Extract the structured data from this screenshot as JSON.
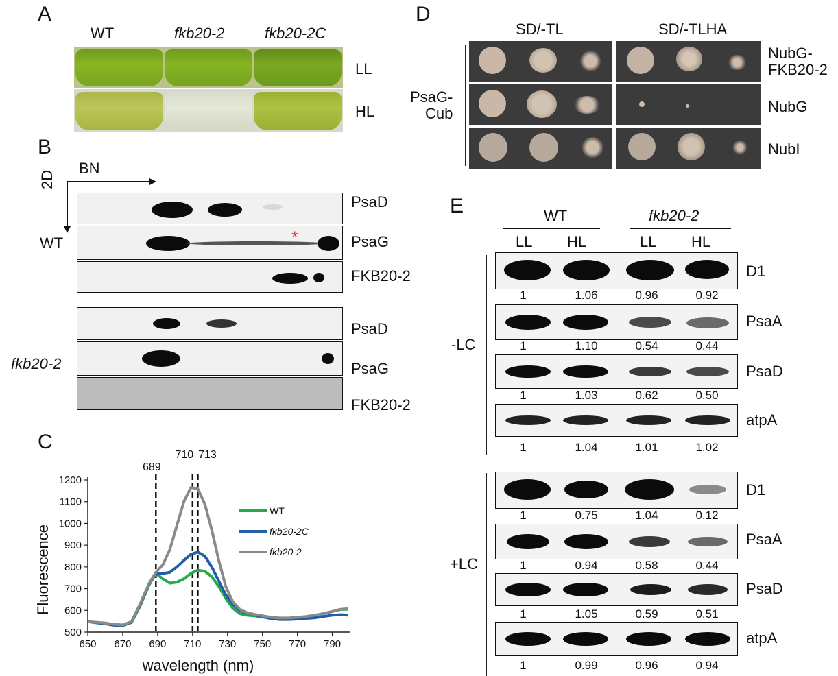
{
  "panelA": {
    "letter": "A",
    "columns": [
      "WT",
      "fkb20-2",
      "fkb20-2C"
    ],
    "rows": [
      "LL",
      "HL"
    ]
  },
  "panelB": {
    "letter": "B",
    "bn_label": "BN",
    "twod_label": "2D",
    "wt_label": "WT",
    "mutant_label": "fkb20-2",
    "wt_blots": [
      "PsaD",
      "PsaG",
      "FKB20-2"
    ],
    "mutant_blots": [
      "PsaD",
      "PsaG",
      "FKB20-2"
    ],
    "asterisk": "*",
    "asterisk_color": "#e0303a"
  },
  "panelC": {
    "letter": "C",
    "chart_data": {
      "type": "line",
      "xlabel": "wavelength (nm)",
      "ylabel": "Fluorescence",
      "xlim": [
        650,
        800
      ],
      "ylim": [
        500,
        1200
      ],
      "xticks": [
        650,
        670,
        690,
        710,
        730,
        750,
        770,
        790
      ],
      "yticks": [
        500,
        600,
        700,
        800,
        900,
        1000,
        1100,
        1200
      ],
      "markers": [
        {
          "label": "689",
          "x": 689
        },
        {
          "label": "710",
          "x": 710
        },
        {
          "label": "713",
          "x": 713
        }
      ],
      "series": [
        {
          "name": "WT",
          "color": "#27a84a",
          "x": [
            650,
            655,
            660,
            665,
            670,
            675,
            680,
            685,
            689,
            693,
            697,
            701,
            705,
            709,
            713,
            717,
            721,
            725,
            729,
            733,
            737,
            741,
            745,
            750,
            755,
            760,
            765,
            770,
            775,
            780,
            785,
            790,
            795,
            799
          ],
          "y": [
            548,
            545,
            540,
            535,
            532,
            545,
            620,
            715,
            770,
            745,
            725,
            730,
            745,
            770,
            785,
            780,
            755,
            710,
            655,
            610,
            585,
            578,
            575,
            570,
            565,
            562,
            562,
            565,
            570,
            575,
            585,
            595,
            605,
            605
          ]
        },
        {
          "name": "fkb20-2C",
          "color": "#1f5fa8",
          "x": [
            650,
            655,
            660,
            665,
            670,
            675,
            680,
            685,
            689,
            693,
            697,
            701,
            705,
            709,
            713,
            717,
            721,
            725,
            729,
            733,
            737,
            741,
            745,
            750,
            755,
            760,
            765,
            770,
            775,
            780,
            785,
            790,
            795,
            799
          ],
          "y": [
            548,
            543,
            538,
            532,
            530,
            545,
            625,
            720,
            772,
            770,
            775,
            800,
            830,
            858,
            868,
            850,
            800,
            735,
            672,
            628,
            600,
            588,
            580,
            570,
            562,
            558,
            558,
            560,
            563,
            566,
            572,
            578,
            580,
            578
          ]
        },
        {
          "name": "fkb20-2",
          "color": "#8a8a8a",
          "x": [
            650,
            655,
            660,
            665,
            670,
            675,
            680,
            685,
            689,
            693,
            697,
            701,
            705,
            709,
            713,
            717,
            721,
            725,
            729,
            733,
            737,
            741,
            745,
            750,
            755,
            760,
            765,
            770,
            775,
            780,
            785,
            790,
            795,
            799
          ],
          "y": [
            548,
            545,
            542,
            536,
            533,
            548,
            630,
            722,
            775,
            810,
            880,
            990,
            1100,
            1165,
            1160,
            1090,
            970,
            830,
            710,
            640,
            605,
            590,
            582,
            575,
            568,
            565,
            565,
            568,
            572,
            578,
            585,
            595,
            605,
            608
          ]
        }
      ]
    }
  },
  "panelD": {
    "letter": "D",
    "media": [
      "SD/-TL",
      "SD/-TLHA"
    ],
    "bait": "PsaG-\nCub",
    "preys": [
      "NubG-\nFKB20-2",
      "NubG",
      "NubI"
    ]
  },
  "panelE": {
    "letter": "E",
    "groups": [
      "WT",
      "fkb20-2"
    ],
    "lanes": [
      "LL",
      "HL",
      "LL",
      "HL"
    ],
    "conditions": [
      "-LC",
      "+LC"
    ],
    "minusLC": [
      {
        "name": "D1",
        "values": [
          "1",
          "1.06",
          "0.96",
          "0.92"
        ]
      },
      {
        "name": "PsaA",
        "values": [
          "1",
          "1.10",
          "0.54",
          "0.44"
        ]
      },
      {
        "name": "PsaD",
        "values": [
          "1",
          "1.03",
          "0.62",
          "0.50"
        ]
      },
      {
        "name": "atpA",
        "values": [
          "1",
          "1.04",
          "1.01",
          "1.02"
        ]
      }
    ],
    "plusLC": [
      {
        "name": "D1",
        "values": [
          "1",
          "0.75",
          "1.04",
          "0.12"
        ]
      },
      {
        "name": "PsaA",
        "values": [
          "1",
          "0.94",
          "0.58",
          "0.44"
        ]
      },
      {
        "name": "PsaD",
        "values": [
          "1",
          "1.05",
          "0.59",
          "0.51"
        ]
      },
      {
        "name": "atpA",
        "values": [
          "1",
          "0.99",
          "0.96",
          "0.94"
        ]
      }
    ]
  }
}
